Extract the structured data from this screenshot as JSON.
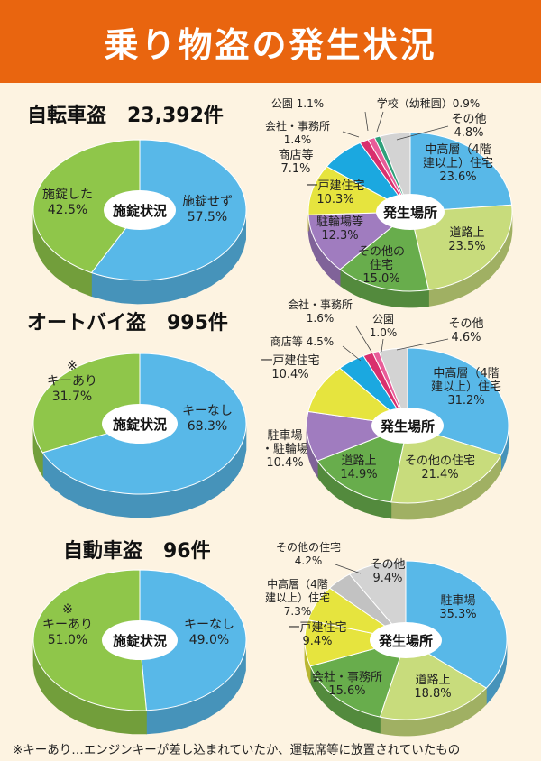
{
  "banner": {
    "title": "乗り物盗の発生状況"
  },
  "sections": [
    {
      "title": "自転車盗",
      "count": "23,392件"
    },
    {
      "title": "オートバイ盗",
      "count": "995件"
    },
    {
      "title": "自動車盗",
      "count": "96件"
    }
  ],
  "footnote": "※キーあり…エンジンキーが差し込まれていたか、運転席等に放置されていたもの",
  "colors": {
    "blue": "#58b8e8",
    "green": "#8fc64a",
    "lime": "#c8dc7c",
    "darkgreen": "#68ad4c",
    "purple": "#a07cbf",
    "yellow": "#e6e43e",
    "cyan": "#1ba8e0",
    "red": "#d9306e",
    "pink": "#e85c98",
    "gray": "#d3d3d3",
    "gray2": "#c2c2c2",
    "teal": "#2fa07a"
  },
  "chart_data": [
    {
      "id": "bicycle-lock",
      "type": "pie",
      "title": "自転車盗 23,392件",
      "center_label": "施錠状況",
      "slices": [
        {
          "label": "施錠せず",
          "pct_text": "57.5%",
          "value": 57.5,
          "color": "blue"
        },
        {
          "label": "施錠した",
          "pct_text": "42.5%",
          "value": 42.5,
          "color": "green"
        }
      ]
    },
    {
      "id": "bicycle-place",
      "type": "pie",
      "title": "自転車盗 23,392件",
      "center_label": "発生場所",
      "slices": [
        {
          "label": "中高層（4階建以上）住宅",
          "lines": [
            "中高層（4階",
            "建以上）住宅"
          ],
          "pct_text": "23.6%",
          "value": 23.6,
          "color": "blue"
        },
        {
          "label": "道路上",
          "pct_text": "23.5%",
          "value": 23.5,
          "color": "lime"
        },
        {
          "label": "その他の住宅",
          "lines": [
            "その他の",
            "住宅"
          ],
          "pct_text": "15.0%",
          "value": 15.0,
          "color": "darkgreen"
        },
        {
          "label": "駐輪場等",
          "pct_text": "12.3%",
          "value": 12.3,
          "color": "purple"
        },
        {
          "label": "一戸建住宅",
          "pct_text": "10.3%",
          "value": 10.3,
          "color": "yellow"
        },
        {
          "label": "商店等",
          "pct_text": "7.1%",
          "value": 7.1,
          "color": "cyan"
        },
        {
          "label": "会社・事務所",
          "pct_text": "1.4%",
          "value": 1.4,
          "color": "red"
        },
        {
          "label": "公園",
          "pct_text": "1.1%",
          "value": 1.1,
          "color": "pink"
        },
        {
          "label": "学校（幼稚園）",
          "pct_text": "0.9%",
          "value": 0.9,
          "color": "teal"
        },
        {
          "label": "その他",
          "pct_text": "4.8%",
          "value": 4.8,
          "color": "gray"
        }
      ],
      "outside_labels": {
        "park": "公園 1.1%",
        "school": "学校（幼稚園）0.9%",
        "other": "その他",
        "other_pct": "4.8%",
        "company": "会社・事務所",
        "company_pct": "1.4%",
        "shop": "商店等",
        "shop_pct": "7.1%"
      }
    },
    {
      "id": "motorcycle-lock",
      "type": "pie",
      "title": "オートバイ盗 995件",
      "center_label": "施錠状況",
      "slices": [
        {
          "label": "キーなし",
          "pct_text": "68.3%",
          "value": 68.3,
          "color": "blue"
        },
        {
          "label": "キーあり",
          "mark": "※",
          "pct_text": "31.7%",
          "value": 31.7,
          "color": "green"
        }
      ]
    },
    {
      "id": "motorcycle-place",
      "type": "pie",
      "title": "オートバイ盗 995件",
      "center_label": "発生場所",
      "slices": [
        {
          "label": "中高層（4階建以上）住宅",
          "lines": [
            "中高層（4階",
            "建以上）住宅"
          ],
          "pct_text": "31.2%",
          "value": 31.2,
          "color": "blue"
        },
        {
          "label": "その他の住宅",
          "pct_text": "21.4%",
          "value": 21.4,
          "color": "lime"
        },
        {
          "label": "道路上",
          "pct_text": "14.9%",
          "value": 14.9,
          "color": "darkgreen"
        },
        {
          "label": "駐車場・駐輪場",
          "lines": [
            "駐車場",
            "・駐輪場"
          ],
          "pct_text": "10.4%",
          "value": 10.4,
          "color": "purple"
        },
        {
          "label": "一戸建住宅",
          "pct_text": "10.4%",
          "value": 10.4,
          "color": "yellow"
        },
        {
          "label": "商店等",
          "pct_text": "4.5%",
          "value": 4.5,
          "color": "cyan"
        },
        {
          "label": "会社・事務所",
          "pct_text": "1.6%",
          "value": 1.6,
          "color": "red"
        },
        {
          "label": "公園",
          "pct_text": "1.0%",
          "value": 1.0,
          "color": "pink"
        },
        {
          "label": "その他",
          "pct_text": "4.6%",
          "value": 4.6,
          "color": "gray"
        }
      ],
      "outside_labels": {
        "company": "会社・事務所",
        "company_pct": "1.6%",
        "park": "公園",
        "park_pct": "1.0%",
        "other": "その他",
        "other_pct": "4.6%",
        "shop": "商店等 4.5%",
        "house": "一戸建住宅",
        "house_pct": "10.4%"
      }
    },
    {
      "id": "car-lock",
      "type": "pie",
      "title": "自動車盗 96件",
      "center_label": "施錠状況",
      "slices": [
        {
          "label": "キーなし",
          "pct_text": "49.0%",
          "value": 49.0,
          "color": "blue"
        },
        {
          "label": "キーあり",
          "mark": "※",
          "pct_text": "51.0%",
          "value": 51.0,
          "color": "green"
        }
      ]
    },
    {
      "id": "car-place",
      "type": "pie",
      "title": "自動車盗 96件",
      "center_label": "発生場所",
      "slices": [
        {
          "label": "駐車場",
          "pct_text": "35.3%",
          "value": 35.3,
          "color": "blue"
        },
        {
          "label": "道路上",
          "pct_text": "18.8%",
          "value": 18.8,
          "color": "lime"
        },
        {
          "label": "会社・事務所",
          "pct_text": "15.6%",
          "value": 15.6,
          "color": "darkgreen"
        },
        {
          "label": "一戸建住宅",
          "pct_text": "9.4%",
          "value": 9.4,
          "color": "yellow"
        },
        {
          "label": "中高層（4階建以上）住宅",
          "lines": [
            "中高層（4階",
            "建以上）住宅"
          ],
          "pct_text": "7.3%",
          "value": 7.3,
          "color": "yellow"
        },
        {
          "label": "その他の住宅",
          "pct_text": "4.2%",
          "value": 4.2,
          "color": "gray2"
        },
        {
          "label": "その他",
          "pct_text": "9.4%",
          "value": 9.4,
          "color": "gray"
        }
      ],
      "outside_labels": {
        "other_house": "その他の住宅",
        "other_house_pct": "4.2%",
        "other": "その他",
        "other_pct": "9.4%",
        "mid": "中高層（4階",
        "mid2": "建以上）住宅",
        "mid_pct": "7.3%",
        "house": "一戸建住宅",
        "house_pct": "9.4%"
      }
    }
  ]
}
